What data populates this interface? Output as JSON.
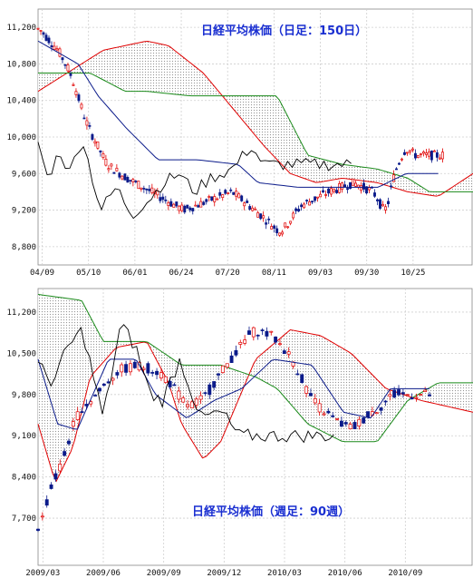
{
  "chart_data": [
    {
      "type": "candlestick",
      "title": "日経平均株価（日足：150日）",
      "y_ticks": [
        "11,200",
        "10,800",
        "10,400",
        "10,000",
        "9,600",
        "9,200",
        "8,800"
      ],
      "y_values": [
        11200,
        10800,
        10400,
        10000,
        9600,
        9200,
        8800
      ],
      "x_ticks": [
        "04/09",
        "05/10",
        "06/01",
        "06/24",
        "07/20",
        "08/11",
        "09/03",
        "09/30",
        "10/25"
      ],
      "ylim": [
        8600,
        11400
      ],
      "grid": true,
      "colors": {
        "up": "#e00000",
        "down": "#0a1a8a",
        "cloud": "#888888",
        "span_b": "#1a8a1a",
        "kijun": "#0a1a8a",
        "chikou": "#000000"
      }
    },
    {
      "type": "candlestick",
      "title": "日経平均株価（週足：90週）",
      "y_ticks": [
        "11,200",
        "10,500",
        "9,800",
        "9,100",
        "8,400",
        "7,700"
      ],
      "y_values": [
        11200,
        10500,
        9800,
        9100,
        8400,
        7700
      ],
      "x_ticks": [
        "2009/03",
        "2009/06",
        "2009/09",
        "2009/12",
        "2010/03",
        "2010/06",
        "2010/09"
      ],
      "ylim": [
        6900,
        11600
      ],
      "grid": true,
      "colors": {
        "up": "#e00000",
        "down": "#0a1a8a",
        "cloud": "#888888",
        "span_b": "#1a8a1a",
        "kijun": "#0a1a8a",
        "chikou": "#000000"
      }
    }
  ]
}
